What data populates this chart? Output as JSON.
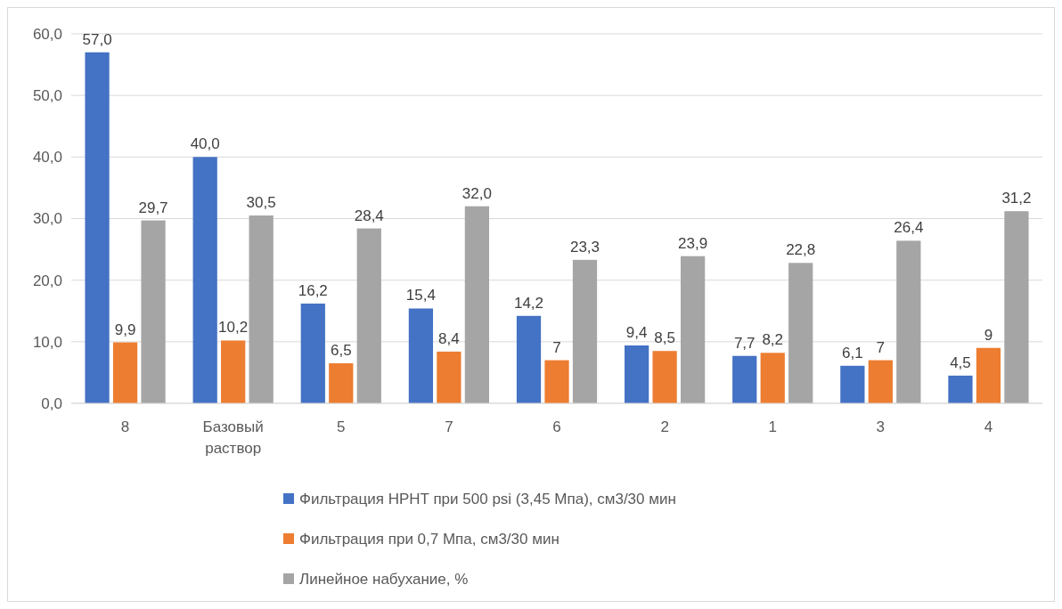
{
  "chart_data": {
    "type": "bar",
    "categories": [
      "8",
      "Базовый раствор",
      "5",
      "7",
      "6",
      "2",
      "1",
      "3",
      "4"
    ],
    "series": [
      {
        "name": "Фильтрация HPHT при 500 psi (3,45 Мпа), см3/30 мин",
        "color": "#4472c4",
        "values": [
          57.0,
          40.0,
          16.2,
          15.4,
          14.2,
          9.4,
          7.7,
          6.1,
          4.5
        ],
        "value_labels": [
          "57,0",
          "40,0",
          "16,2",
          "15,4",
          "14,2",
          "9,4",
          "7,7",
          "6,1",
          "4,5"
        ]
      },
      {
        "name": "Фильтрация при 0,7 Мпа, см3/30 мин",
        "color": "#ed7d31",
        "values": [
          9.9,
          10.2,
          6.5,
          8.4,
          7,
          8.5,
          8.2,
          7,
          9
        ],
        "value_labels": [
          "9,9",
          "10,2",
          "6,5",
          "8,4",
          "7",
          "8,5",
          "8,2",
          "7",
          "9"
        ]
      },
      {
        "name": "Линейное набухание, %",
        "color": "#a5a5a5",
        "values": [
          29.7,
          30.5,
          28.4,
          32.0,
          23.3,
          23.9,
          22.8,
          26.4,
          31.2
        ],
        "value_labels": [
          "29,7",
          "30,5",
          "28,4",
          "32,0",
          "23,3",
          "23,9",
          "22,8",
          "26,4",
          "31,2"
        ]
      }
    ],
    "ylim": [
      0,
      60
    ],
    "yticks": [
      {
        "value": 0,
        "label": "0,0"
      },
      {
        "value": 10,
        "label": "10,0"
      },
      {
        "value": 20,
        "label": "20,0"
      },
      {
        "value": 30,
        "label": "30,0"
      },
      {
        "value": 40,
        "label": "40,0"
      },
      {
        "value": 50,
        "label": "50,0"
      },
      {
        "value": 60,
        "label": "60,0"
      }
    ],
    "grid": "y",
    "legend": "bottom"
  }
}
